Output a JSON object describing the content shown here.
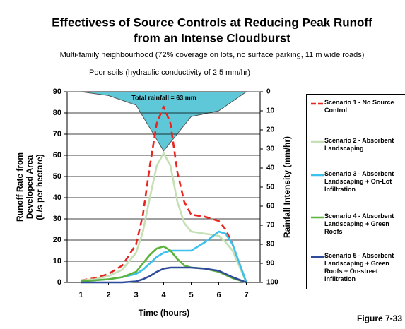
{
  "chart_data": {
    "type": "line",
    "title": [
      "Effectivess of Source Controls at Reducing Peak Runoff",
      "from an Intense Cloudburst"
    ],
    "subtitle": [
      "Multi-family neighbourhood (72% coverage on lots, no surface parking, 11 m wide roads)",
      "Poor soils (hydraulic conductivity of 2.5 mm/hr)"
    ],
    "x_label": "Time (hours)",
    "y_label": [
      "Runoff Rate from",
      "Developed Area",
      "(L/s per hectare)"
    ],
    "y2_label": "Rainfall Intensity (mm/hr)",
    "annotation": "Total rainfall = 63 mm",
    "figure_label": "Figure 7-33",
    "xlim": [
      0.5,
      7.5
    ],
    "xticks": [
      1,
      2,
      3,
      4,
      5,
      6,
      7
    ],
    "ylim": [
      0,
      90
    ],
    "yticks": [
      0,
      10,
      20,
      30,
      40,
      50,
      60,
      70,
      80,
      90
    ],
    "y2lim": [
      0,
      100
    ],
    "y2_inverted": true,
    "y2ticks": [
      0,
      10,
      20,
      30,
      40,
      50,
      60,
      70,
      80,
      90,
      100
    ],
    "grid": true,
    "x": [
      1,
      1.5,
      2,
      2.5,
      3,
      3.25,
      3.5,
      3.75,
      4,
      4.25,
      4.5,
      4.75,
      5,
      5.5,
      6,
      6.25,
      6.5,
      7
    ],
    "series": [
      {
        "name": "Scenario 1 - No Source Control",
        "color": "#e8251f",
        "dashed": true,
        "values": [
          1,
          2,
          4,
          8,
          18,
          32,
          55,
          75,
          83,
          75,
          52,
          38,
          32,
          31,
          29,
          25,
          18,
          0
        ]
      },
      {
        "name": "Scenario 2 - Absorbent Landscaping",
        "color": "#c5e0b4",
        "values": [
          1,
          1.5,
          3,
          6,
          14,
          24,
          40,
          55,
          61,
          55,
          38,
          28,
          24,
          23,
          22,
          19,
          15,
          0
        ]
      },
      {
        "name": "Scenario 3 - Absorbent Landscaping + On-Lot Infiltration",
        "color": "#3cc0ee",
        "values": [
          0.5,
          1,
          1.5,
          2.5,
          4,
          6,
          9,
          12,
          14,
          15,
          15,
          15,
          15,
          19,
          24,
          23,
          18,
          0
        ]
      },
      {
        "name": "Scenario 4 - Absorbent Landscaping + Green Roofs",
        "color": "#5db33c",
        "values": [
          0.5,
          1,
          1.5,
          2.5,
          5,
          9,
          13,
          16,
          17,
          15,
          11,
          8,
          7,
          6.5,
          5,
          3.5,
          2,
          0
        ]
      },
      {
        "name": "Scenario 5 - Absorbent Landscaping + Green Roofs + On-street Infiltration",
        "color": "#2e4a9a",
        "values": [
          0,
          0,
          0,
          0,
          0.5,
          1.5,
          3,
          5,
          6.5,
          7,
          7,
          7,
          7,
          6.5,
          5.5,
          4,
          2.5,
          0
        ]
      }
    ],
    "rainfall": {
      "color": "#5ec8d8",
      "axis": "y2",
      "x": [
        1,
        2,
        3,
        4,
        5,
        6,
        7
      ],
      "values": [
        0,
        2,
        7,
        31,
        13,
        10,
        0
      ]
    }
  }
}
